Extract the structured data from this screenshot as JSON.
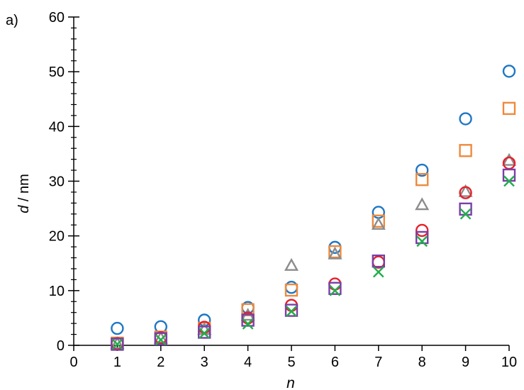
{
  "chart_data": {
    "type": "scatter",
    "panel_label": "a)",
    "xlabel": "n",
    "ylabel_italic": "d",
    "ylabel_rest": " / nm",
    "xlim": [
      0,
      10
    ],
    "ylim": [
      0,
      60
    ],
    "x_ticks": [
      0,
      1,
      2,
      3,
      4,
      5,
      6,
      7,
      8,
      9,
      10
    ],
    "y_ticks": [
      0,
      10,
      20,
      30,
      40,
      50,
      60
    ],
    "x": [
      1,
      2,
      3,
      4,
      5,
      6,
      7,
      8,
      9,
      10
    ],
    "grid": false,
    "series": [
      {
        "marker": "circle",
        "color": "#1f77c4",
        "values": [
          3.1,
          3.4,
          4.6,
          6.9,
          10.6,
          17.9,
          24.3,
          32.0,
          41.4,
          50.1
        ]
      },
      {
        "marker": "square",
        "color": "#ee8a3c",
        "values": [
          0.4,
          1.5,
          3.1,
          6.5,
          10.1,
          17.1,
          22.7,
          30.3,
          35.6,
          43.3
        ]
      },
      {
        "marker": "triangle",
        "color": "#8c8c8c",
        "values": [
          0.3,
          1.3,
          2.9,
          5.5,
          14.6,
          16.7,
          22.1,
          25.7,
          28.1,
          33.8
        ]
      },
      {
        "marker": "circle",
        "color": "#e8202a",
        "values": [
          0.3,
          1.4,
          3.3,
          5.0,
          7.3,
          11.2,
          15.2,
          21.0,
          27.9,
          33.3
        ]
      },
      {
        "marker": "square",
        "color": "#7a3fa8",
        "values": [
          0.2,
          1.2,
          2.4,
          4.6,
          6.4,
          10.4,
          15.4,
          19.7,
          24.9,
          31.1
        ]
      },
      {
        "marker": "x",
        "color": "#1fae4b",
        "values": [
          0.2,
          1.0,
          2.2,
          3.9,
          6.2,
          10.0,
          13.4,
          19.0,
          24.0,
          30.0
        ]
      }
    ]
  }
}
